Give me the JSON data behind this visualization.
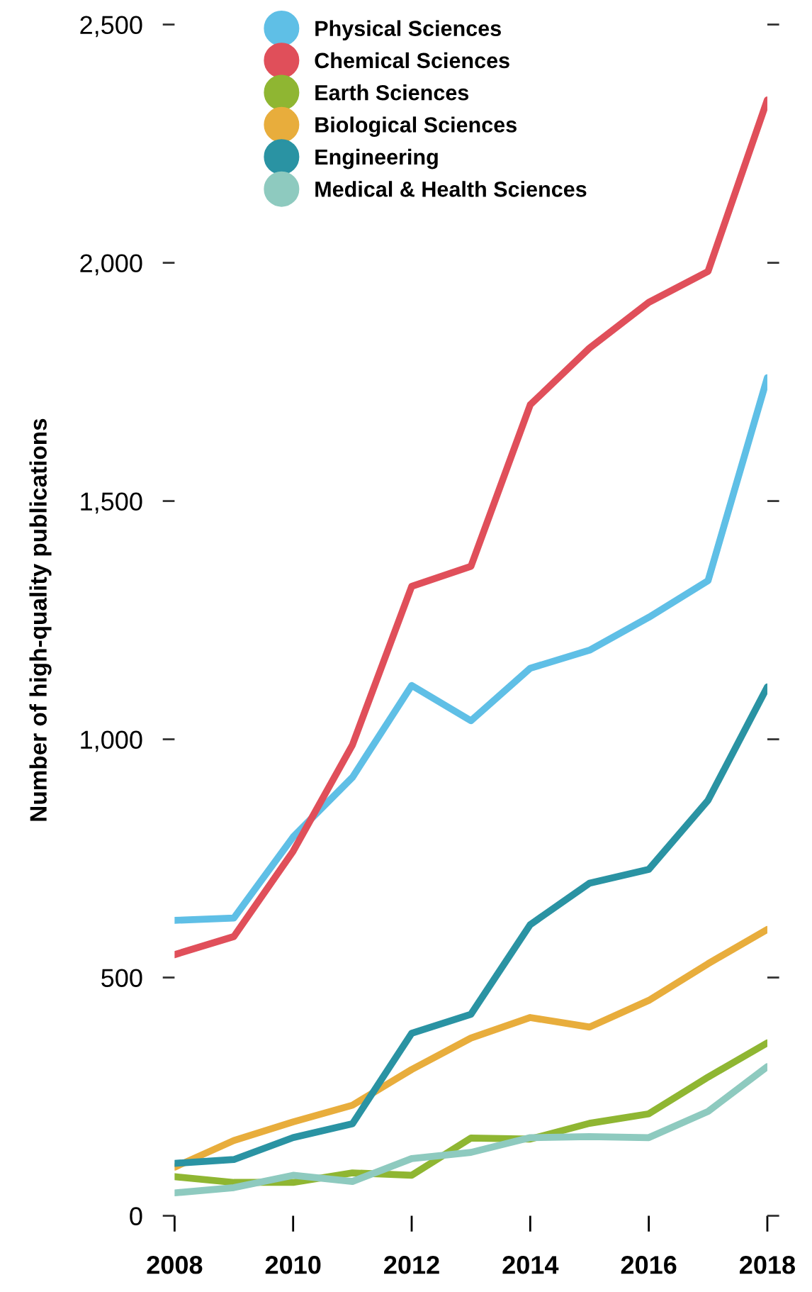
{
  "chart_data": {
    "type": "line",
    "ylabel": "Number of high-quality publications",
    "x": [
      2008,
      2009,
      2010,
      2011,
      2012,
      2013,
      2014,
      2015,
      2016,
      2017,
      2018
    ],
    "xlim": [
      2008,
      2018
    ],
    "xticks": [
      2008,
      2010,
      2012,
      2014,
      2016,
      2018
    ],
    "ylim": [
      0,
      2500
    ],
    "yticks": [
      0,
      500,
      {
        "value": 1000,
        "label": "1,000"
      },
      {
        "value": 1500,
        "label": "1,500"
      },
      {
        "value": 2000,
        "label": "2,000"
      },
      {
        "value": 2500,
        "label": "2,500"
      }
    ],
    "grid": false,
    "legend": "top",
    "marker": "none",
    "line_style": "solid",
    "series": [
      {
        "name": "Physical Sciences",
        "color": "#5fbfe6",
        "values": [
          620,
          625,
          795,
          920,
          1113,
          1039,
          1149,
          1187,
          1256,
          1333,
          1759
        ]
      },
      {
        "name": "Chemical Sciences",
        "color": "#e04f5a",
        "values": [
          548,
          586,
          765,
          988,
          1321,
          1363,
          1702,
          1821,
          1917,
          1982,
          2342
        ]
      },
      {
        "name": "Earth Sciences",
        "color": "#8fb632",
        "values": [
          82,
          70,
          70,
          90,
          85,
          163,
          161,
          194,
          214,
          291,
          363
        ]
      },
      {
        "name": "Biological Sciences",
        "color": "#e8ad3c",
        "values": [
          102,
          158,
          197,
          232,
          307,
          373,
          416,
          396,
          452,
          529,
          601
        ]
      },
      {
        "name": "Engineering",
        "color": "#2a93a3",
        "values": [
          110,
          118,
          164,
          193,
          383,
          423,
          611,
          698,
          727,
          872,
          1110
        ]
      },
      {
        "name": "Medical & Health Sciences",
        "color": "#8ecabf",
        "values": [
          48,
          59,
          85,
          72,
          120,
          133,
          164,
          166,
          164,
          219,
          313
        ]
      }
    ]
  }
}
